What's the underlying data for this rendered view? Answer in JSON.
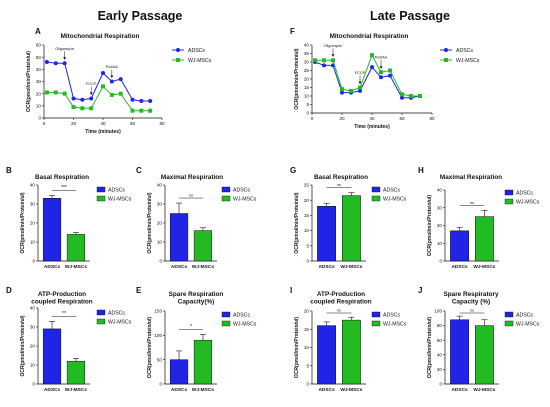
{
  "colors": {
    "ADSCs": "#1f24e6",
    "WJ-MSCs": "#22bb22"
  },
  "headers": {
    "early": "Early Passage",
    "late": "Late Passage"
  },
  "chart_data": [
    {
      "id": "A",
      "type": "line",
      "title": "Mitochondrial Respiration",
      "xlabel": "Time (minutes)",
      "ylabel": "OCR(pmol/min/Protein/ul)",
      "xlim": [
        0,
        80
      ],
      "ylim": [
        0,
        60
      ],
      "xticks": [
        0,
        20,
        40,
        60,
        80
      ],
      "yticks": [
        0,
        10,
        20,
        30,
        40,
        50,
        60
      ],
      "x": [
        2,
        8,
        14,
        20,
        26,
        32,
        40,
        46,
        52,
        60,
        66,
        72
      ],
      "series": [
        {
          "name": "ADSCs",
          "values": [
            46,
            45,
            45,
            16,
            15,
            16,
            37,
            30,
            32,
            15,
            14,
            14
          ]
        },
        {
          "name": "WJ-MSCs",
          "values": [
            21,
            21,
            20,
            9,
            8,
            8,
            26,
            19,
            20,
            6,
            6,
            6
          ]
        }
      ],
      "annotations": [
        {
          "text": "Oligomycin",
          "x": 14
        },
        {
          "text": "FCCP",
          "x": 32
        },
        {
          "text": "Rot/AA",
          "x": 46
        }
      ],
      "legend": "right"
    },
    {
      "id": "F",
      "type": "line",
      "title": "Mitochondrial Respiration",
      "xlabel": "Time (minutes)",
      "ylabel": "OCR(pmol/min/Protein/ul)",
      "xlim": [
        0,
        80
      ],
      "ylim": [
        0,
        40
      ],
      "xticks": [
        0,
        20,
        40,
        60,
        80
      ],
      "yticks": [
        0,
        5,
        10,
        15,
        20,
        25,
        30,
        35,
        40
      ],
      "x": [
        2,
        8,
        14,
        20,
        26,
        32,
        40,
        46,
        52,
        60,
        66,
        72
      ],
      "series": [
        {
          "name": "ADSCs",
          "values": [
            30,
            28,
            28,
            12,
            12,
            13,
            27,
            21,
            22,
            9,
            9,
            10
          ]
        },
        {
          "name": "WJ-MSCs",
          "values": [
            31,
            31,
            31,
            14,
            13,
            15,
            34,
            24,
            25,
            11,
            10,
            10
          ]
        }
      ],
      "annotations": [
        {
          "text": "Oligomycin",
          "x": 14
        },
        {
          "text": "FCCP",
          "x": 32
        },
        {
          "text": "Rot/AA",
          "x": 46
        }
      ],
      "legend": "right"
    },
    {
      "id": "B",
      "type": "bar",
      "title": "Basal Respiration",
      "ylabel": "OCR(pmol/min/Protein/ul)",
      "categories": [
        "ADSCs",
        "WJ-MSCs"
      ],
      "values": [
        33,
        14
      ],
      "errors": [
        1.5,
        1
      ],
      "ylim": [
        0,
        40
      ],
      "yticks": [
        0,
        10,
        20,
        30,
        40
      ],
      "sig": "***",
      "legend": "right"
    },
    {
      "id": "C",
      "type": "bar",
      "title": "Maximal Respiration",
      "ylabel": "OCR(pmol/min/Protein/ul)",
      "categories": [
        "ADSCs",
        "WJ-MSCs"
      ],
      "values": [
        25,
        16
      ],
      "errors": [
        5.5,
        1.5
      ],
      "ylim": [
        0,
        40
      ],
      "yticks": [
        0,
        10,
        20,
        30,
        40
      ],
      "sig": "ns",
      "legend": "right"
    },
    {
      "id": "D",
      "type": "bar",
      "title": "ATP-Production\ncoupled Respiration",
      "ylabel": "OCR(pmol/min/Protein/ul)",
      "categories": [
        "ADSCs",
        "WJ-MSCs"
      ],
      "values": [
        29,
        12
      ],
      "errors": [
        4,
        1.5
      ],
      "ylim": [
        0,
        40
      ],
      "yticks": [
        0,
        10,
        20,
        30,
        40
      ],
      "sig": "**",
      "legend": "right"
    },
    {
      "id": "E",
      "type": "bar",
      "title": "Spare Respiration\nCapacity(%)",
      "ylabel": "OCR(pmol/min/Protein/ul)",
      "categories": [
        "ADSCs",
        "WJ-MSCs"
      ],
      "values": [
        50,
        90
      ],
      "errors": [
        18,
        12
      ],
      "ylim": [
        0,
        150
      ],
      "yticks": [
        0,
        50,
        100,
        150
      ],
      "sig": "*",
      "legend": "top-right"
    },
    {
      "id": "G",
      "type": "bar",
      "title": "Basal Respiration",
      "ylabel": "OCR(pmol/min/Protein/ul)",
      "categories": [
        "ADSCs",
        "WJ-MSCs"
      ],
      "values": [
        18,
        21.5
      ],
      "errors": [
        1,
        1
      ],
      "ylim": [
        0,
        25
      ],
      "yticks": [
        0,
        5,
        10,
        15,
        20,
        25
      ],
      "sig": "ns",
      "legend": "right"
    },
    {
      "id": "H",
      "type": "bar",
      "title": "Maximal Respiration",
      "ylabel": "OCR(pmol/min/Protein/ul)",
      "categories": [
        "ADSCs",
        "WJ-MSCs"
      ],
      "values": [
        17,
        25
      ],
      "errors": [
        2,
        3.5
      ],
      "ylim": [
        0,
        40
      ],
      "yticks": [
        0,
        10,
        20,
        30,
        40
      ],
      "sig": "ns",
      "legend": "right"
    },
    {
      "id": "I",
      "type": "bar",
      "title": "ATP-Production\ncoupled Respiration",
      "ylabel": "OCR(pmol/min/Protein/ul)",
      "categories": [
        "ADSCs",
        "WJ-MSCs"
      ],
      "values": [
        16,
        17.5
      ],
      "errors": [
        1,
        0.8
      ],
      "ylim": [
        0,
        20
      ],
      "yticks": [
        0,
        5,
        10,
        15,
        20
      ],
      "sig": "ns",
      "legend": "right"
    },
    {
      "id": "J",
      "type": "bar",
      "title": "Spare Respiratory\nCapacity (%)",
      "ylabel": "OCR(pmol/min/Protein/ul)",
      "categories": [
        "ADSCs",
        "WJ-MSCs"
      ],
      "values": [
        88,
        80
      ],
      "errors": [
        5,
        8
      ],
      "ylim": [
        0,
        100
      ],
      "yticks": [
        0,
        20,
        40,
        60,
        80,
        100
      ],
      "sig": "ns",
      "legend": "right"
    }
  ]
}
